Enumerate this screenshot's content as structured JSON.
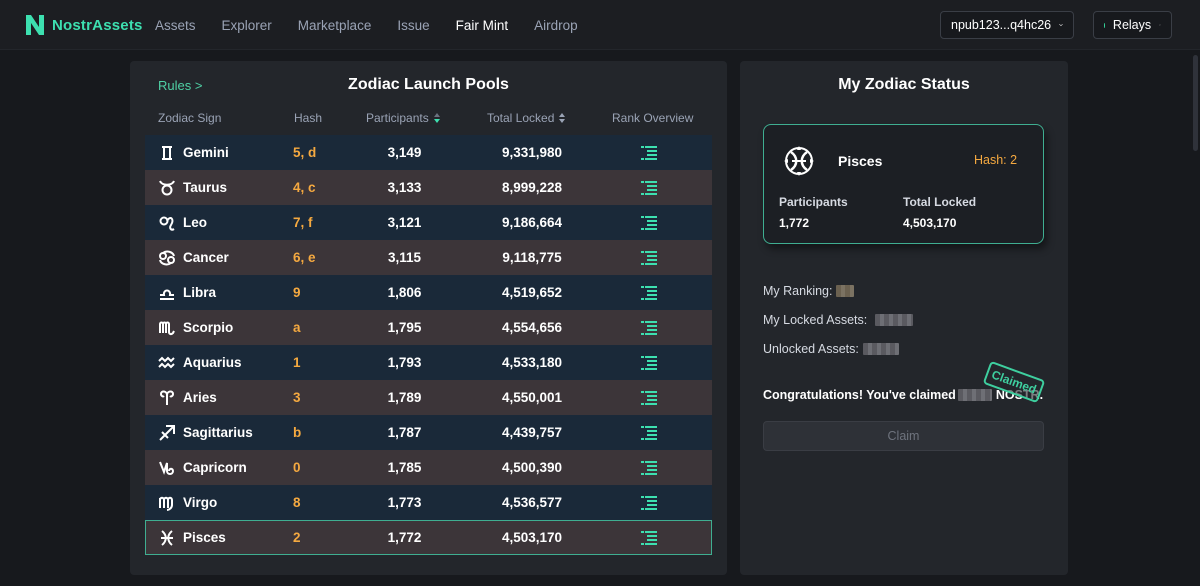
{
  "brand": {
    "name": "NostrAssets"
  },
  "nav": {
    "links": [
      "Assets",
      "Explorer",
      "Marketplace",
      "Issue",
      "Fair Mint",
      "Airdrop"
    ],
    "active": "Fair Mint",
    "wallet": "npub123...q4hc26",
    "relays": "Relays"
  },
  "pools": {
    "rules_label": "Rules >",
    "title": "Zodiac Launch Pools",
    "columns": {
      "sign": "Zodiac Sign",
      "hash": "Hash",
      "participants": "Participants",
      "locked": "Total Locked",
      "rank": "Rank Overview"
    },
    "rows": [
      {
        "sign": "Gemini",
        "hash": "5, d",
        "participants": "3,149",
        "locked": "9,331,980",
        "icon": "gemini-icon"
      },
      {
        "sign": "Taurus",
        "hash": "4, c",
        "participants": "3,133",
        "locked": "8,999,228",
        "icon": "taurus-icon"
      },
      {
        "sign": "Leo",
        "hash": "7, f",
        "participants": "3,121",
        "locked": "9,186,664",
        "icon": "leo-icon"
      },
      {
        "sign": "Cancer",
        "hash": "6, e",
        "participants": "3,115",
        "locked": "9,118,775",
        "icon": "cancer-icon"
      },
      {
        "sign": "Libra",
        "hash": "9",
        "participants": "1,806",
        "locked": "4,519,652",
        "icon": "libra-icon"
      },
      {
        "sign": "Scorpio",
        "hash": "a",
        "participants": "1,795",
        "locked": "4,554,656",
        "icon": "scorpio-icon"
      },
      {
        "sign": "Aquarius",
        "hash": "1",
        "participants": "1,793",
        "locked": "4,533,180",
        "icon": "aquarius-icon"
      },
      {
        "sign": "Aries",
        "hash": "3",
        "participants": "1,789",
        "locked": "4,550,001",
        "icon": "aries-icon"
      },
      {
        "sign": "Sagittarius",
        "hash": "b",
        "participants": "1,787",
        "locked": "4,439,757",
        "icon": "sagittarius-icon"
      },
      {
        "sign": "Capricorn",
        "hash": "0",
        "participants": "1,785",
        "locked": "4,500,390",
        "icon": "capricorn-icon"
      },
      {
        "sign": "Virgo",
        "hash": "8",
        "participants": "1,773",
        "locked": "4,536,577",
        "icon": "virgo-icon"
      },
      {
        "sign": "Pisces",
        "hash": "2",
        "participants": "1,772",
        "locked": "4,503,170",
        "icon": "pisces-icon"
      }
    ],
    "selected_sign": "Pisces"
  },
  "status": {
    "title": "My Zodiac Status",
    "card": {
      "sign": "Pisces",
      "hash": "Hash: 2",
      "participants_label": "Participants",
      "participants": "1,772",
      "locked_label": "Total Locked",
      "locked": "4,503,170"
    },
    "ranking_label": "My Ranking:",
    "locked_assets_label": "My Locked Assets:",
    "unlocked_assets_label": "Unlocked Assets:",
    "congrats_prefix": "Congratulations! You've claimed",
    "congrats_suffix": "NOSTR.",
    "stamp": "Claimed",
    "claim_button": "Claim"
  },
  "colors": {
    "accent": "#3de0b0",
    "hash": "#f5a940",
    "row_dark": "#1a2939",
    "row_light": "#3c3539"
  }
}
